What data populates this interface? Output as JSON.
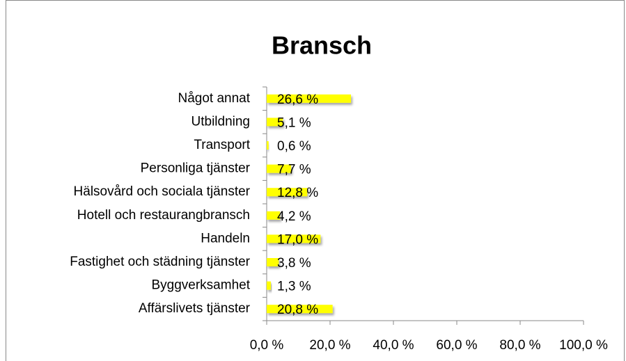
{
  "chart_data": {
    "type": "bar",
    "orientation": "horizontal",
    "title": "Bransch",
    "categories": [
      "Något annat",
      "Utbildning",
      "Transport",
      "Personliga tjänster",
      "Hälsovård och sociala tjänster",
      "Hotell och restaurangbransch",
      "Handeln",
      "Fastighet och städning tjänster",
      "Byggverksamhet",
      "Affärslivets tjänster"
    ],
    "values": [
      26.6,
      5.1,
      0.6,
      7.7,
      12.8,
      4.2,
      17.0,
      3.8,
      1.3,
      20.8
    ],
    "value_labels": [
      "26,6 %",
      "5,1 %",
      "0,6 %",
      "7,7 %",
      "12,8 %",
      "4,2 %",
      "17,0 %",
      "3,8 %",
      "1,3 %",
      "20,8 %"
    ],
    "color": "#ffff00",
    "xlim": [
      0,
      100
    ],
    "xticks": [
      {
        "value": 0,
        "label": "0,0 %"
      },
      {
        "value": 20,
        "label": "20,0 %"
      },
      {
        "value": 40,
        "label": "40,0 %"
      },
      {
        "value": 60,
        "label": "60,0 %"
      },
      {
        "value": 80,
        "label": "80,0 %"
      },
      {
        "value": 100,
        "label": "100,0 %"
      }
    ],
    "grid": false
  }
}
